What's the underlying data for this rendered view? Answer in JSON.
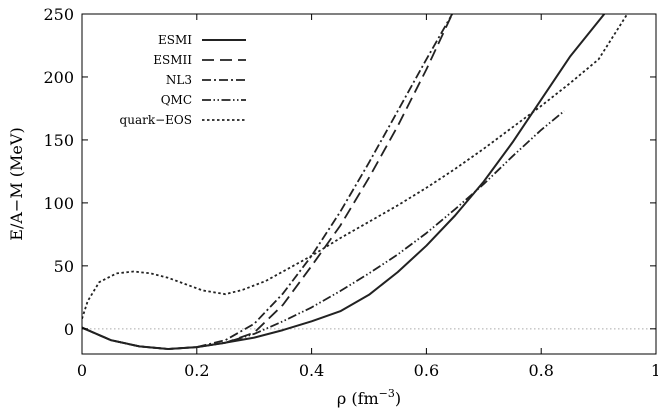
{
  "chart_data": {
    "type": "line",
    "title": "",
    "xlabel": "ρ (fm",
    "xlabel_exponent": "−3",
    "xlabel_suffix": ")",
    "ylabel": "E/A−M (MeV)",
    "xlim": [
      0,
      1
    ],
    "ylim": [
      -20,
      250
    ],
    "xticks": [
      0,
      0.2,
      0.4,
      0.6,
      0.8,
      1
    ],
    "xtick_labels": [
      "0",
      "0.2",
      "0.4",
      "0.6",
      "0.8",
      "1"
    ],
    "yticks": [
      0,
      50,
      100,
      150,
      200,
      250
    ],
    "ytick_labels": [
      "0",
      "50",
      "100",
      "150",
      "200",
      "250"
    ],
    "grid": false,
    "legend_position": "top-left",
    "zero_reference_line": true,
    "series": [
      {
        "name": "ESMI",
        "dash": "solid",
        "x": [
          0,
          0.05,
          0.1,
          0.15,
          0.2,
          0.25,
          0.3,
          0.35,
          0.4,
          0.45,
          0.5,
          0.55,
          0.6,
          0.65,
          0.7,
          0.75,
          0.8,
          0.85,
          0.91
        ],
        "y": [
          1,
          -9,
          -14,
          -16,
          -14.5,
          -11,
          -7,
          -1,
          6,
          14,
          27,
          45,
          66,
          90,
          117,
          148,
          182,
          216,
          250
        ]
      },
      {
        "name": "ESMII",
        "dash": "dashed",
        "x": [
          0,
          0.05,
          0.1,
          0.15,
          0.2,
          0.25,
          0.3,
          0.35,
          0.4,
          0.45,
          0.5,
          0.55,
          0.6,
          0.645
        ],
        "y": [
          1,
          -9,
          -14,
          -16,
          -14.5,
          -11,
          -3,
          19,
          50,
          82,
          120,
          161,
          206,
          250
        ]
      },
      {
        "name": "NL3",
        "dash": "dash-dot",
        "x": [
          0,
          0.05,
          0.1,
          0.15,
          0.2,
          0.25,
          0.3,
          0.35,
          0.4,
          0.45,
          0.5,
          0.55,
          0.6,
          0.645
        ],
        "y": [
          1,
          -9,
          -14,
          -16,
          -14.5,
          -9,
          4,
          28,
          58,
          93,
          132,
          173,
          214,
          250
        ]
      },
      {
        "name": "QMC",
        "dash": "dash-dot-dot",
        "x": [
          0,
          0.05,
          0.1,
          0.15,
          0.2,
          0.25,
          0.3,
          0.35,
          0.4,
          0.45,
          0.5,
          0.55,
          0.6,
          0.65,
          0.7,
          0.75,
          0.8,
          0.84
        ],
        "y": [
          1,
          -9,
          -14,
          -16,
          -14.5,
          -11,
          -4,
          6,
          17,
          30,
          44,
          59,
          76,
          95,
          115,
          137,
          158,
          173
        ]
      },
      {
        "name": "quark−EOS",
        "dash": "dotted",
        "x": [
          0,
          0.01,
          0.03,
          0.06,
          0.09,
          0.12,
          0.15,
          0.18,
          0.21,
          0.25,
          0.28,
          0.32,
          0.36,
          0.4,
          0.45,
          0.5,
          0.55,
          0.6,
          0.65,
          0.7,
          0.75,
          0.8,
          0.85,
          0.9,
          0.95
        ],
        "y": [
          8,
          22,
          37,
          44,
          45.5,
          44,
          40.5,
          35.5,
          30.5,
          27.5,
          31,
          38,
          48,
          58,
          72,
          85,
          98,
          112,
          127,
          143,
          160,
          177,
          195,
          214,
          250
        ]
      }
    ]
  }
}
